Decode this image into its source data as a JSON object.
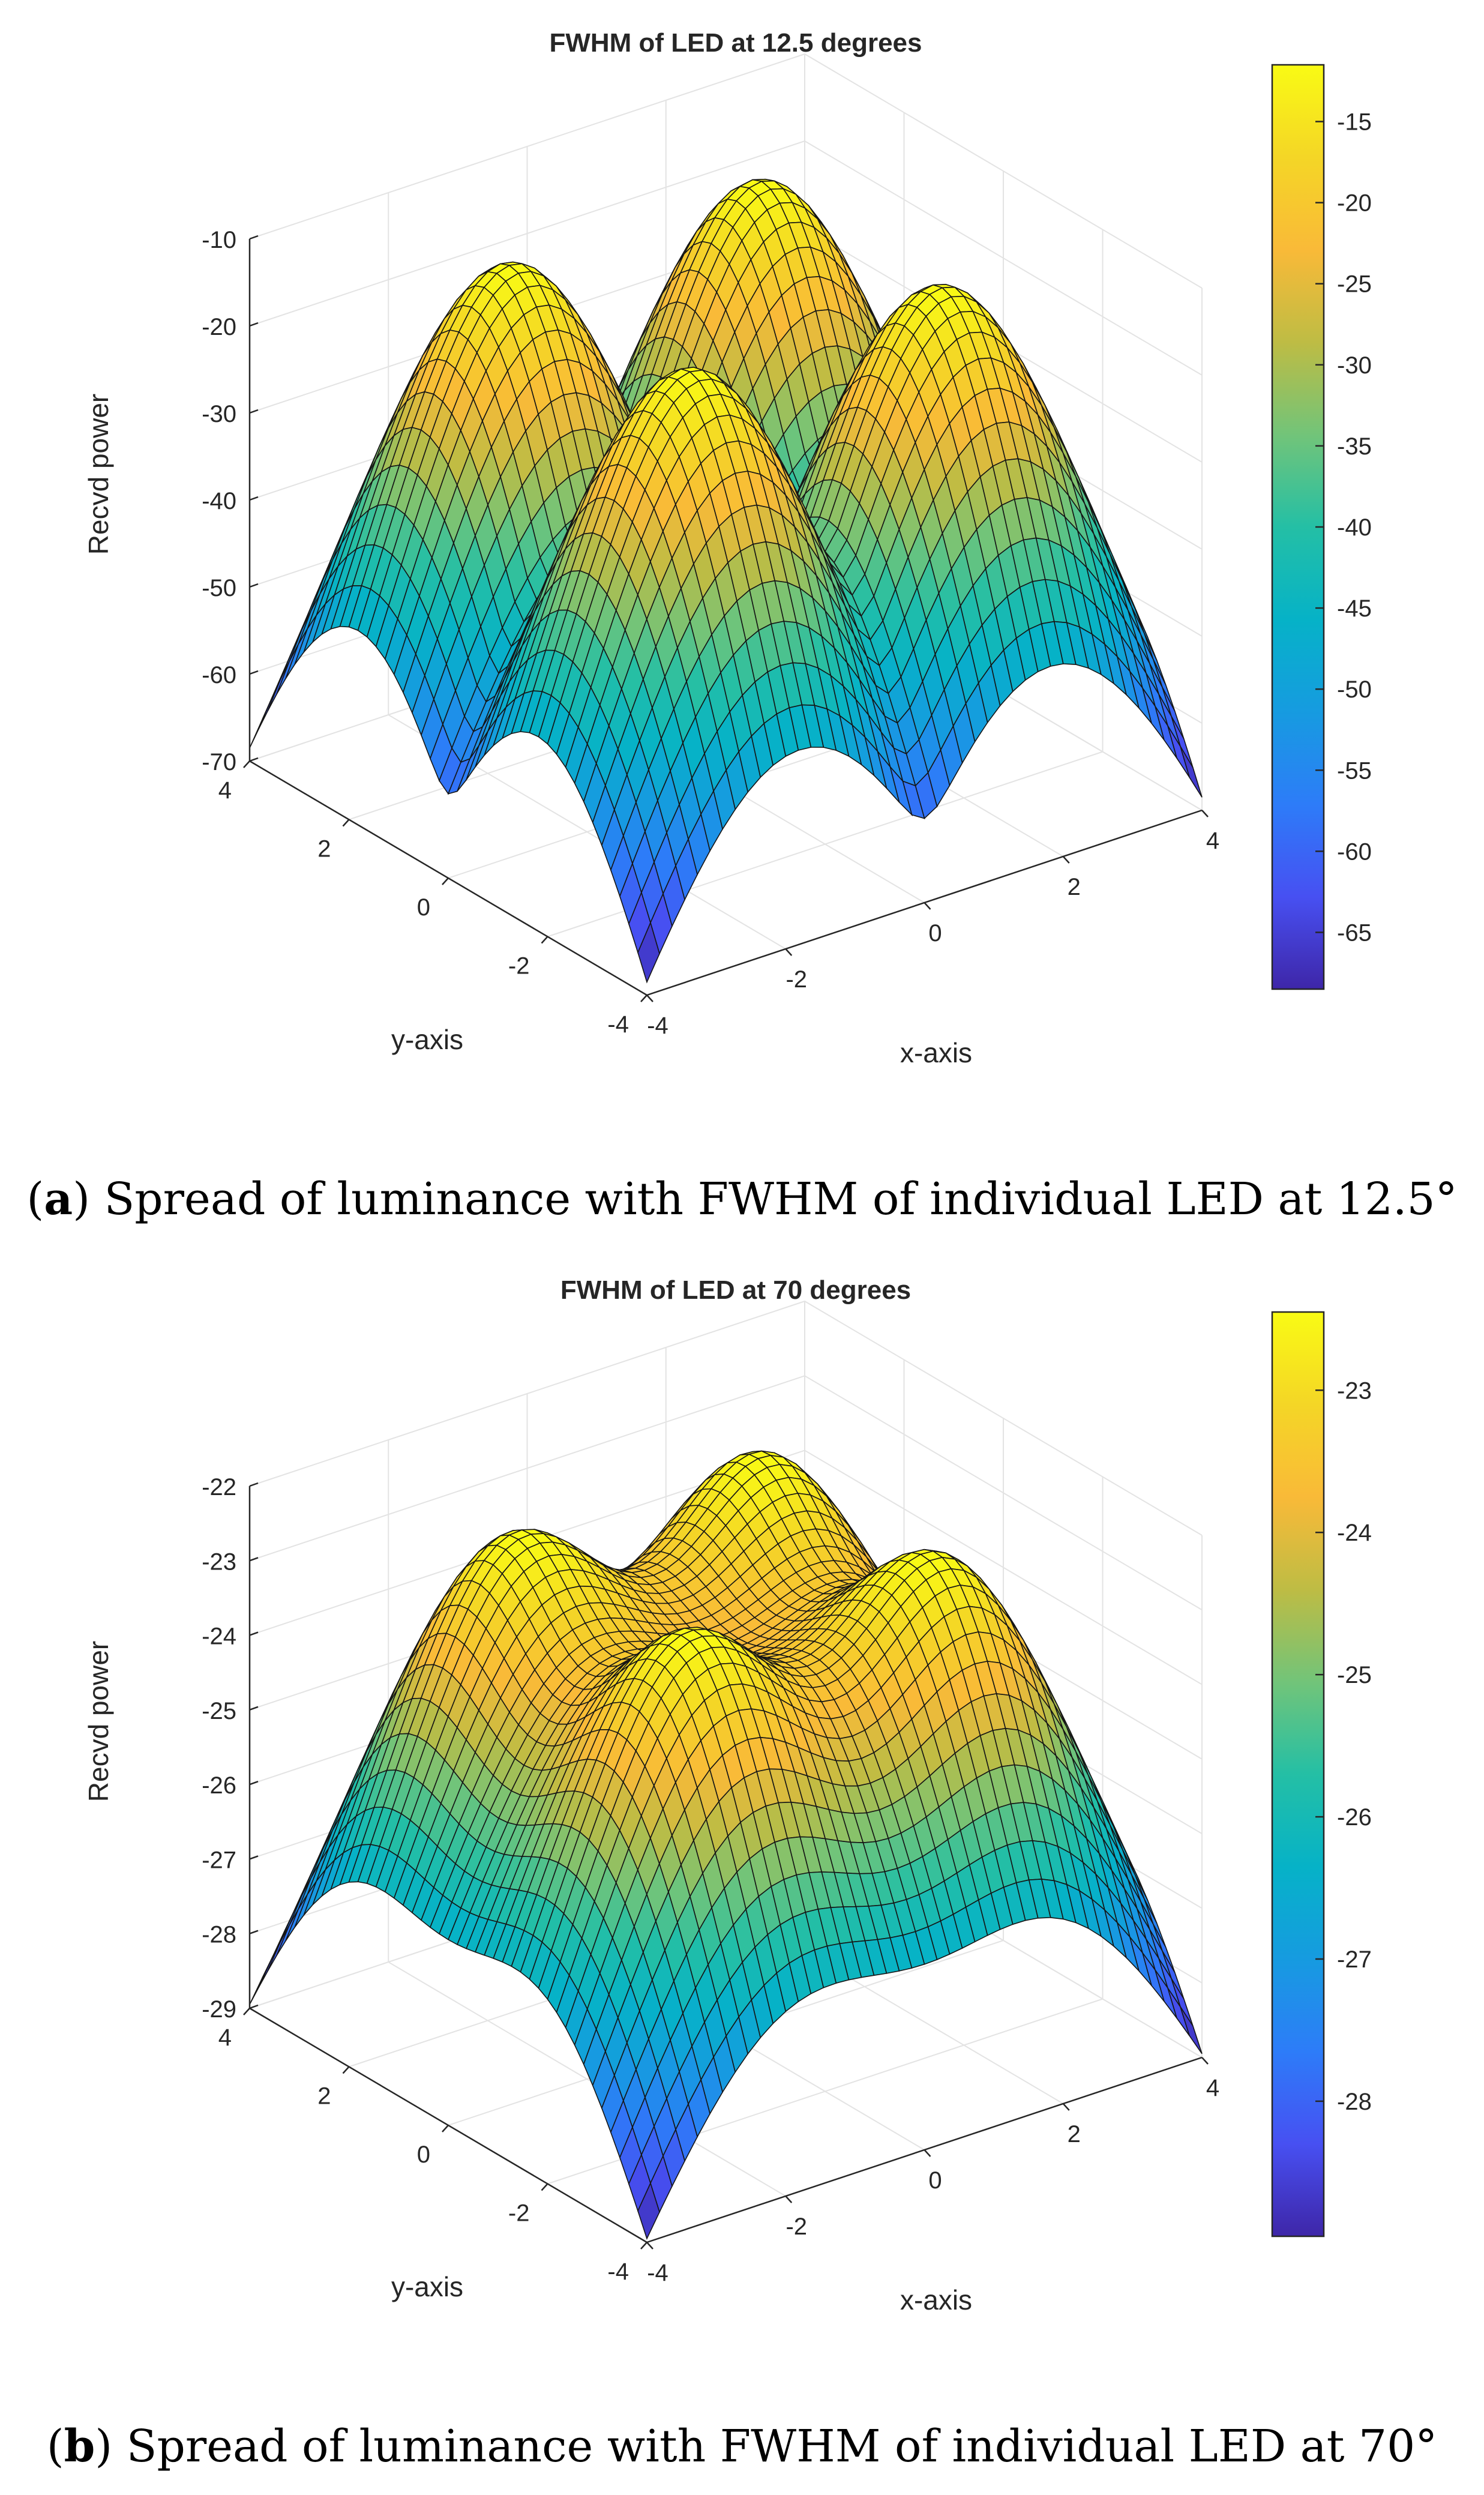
{
  "chart_data": [
    {
      "type": "surface",
      "panel": "a",
      "title": "FWHM of LED at 12.5 degrees",
      "xlabel": "x-axis",
      "ylabel": "y-axis",
      "zlabel": "Recvd power",
      "xlim": [
        -4,
        4
      ],
      "ylim": [
        -4,
        4
      ],
      "zlim": [
        -70,
        -10
      ],
      "xticks": [
        "-4",
        "-2",
        "0",
        "2",
        "4"
      ],
      "yticks": [
        "-4",
        "-2",
        "0",
        "2",
        "4"
      ],
      "zticks": [
        "-70",
        "-60",
        "-50",
        "-40",
        "-30",
        "-20",
        "-10"
      ],
      "grid": true,
      "colormap": "parula",
      "colorbar": {
        "range": [
          -68.5,
          -11.5
        ],
        "ticks": [
          "-65",
          "-60",
          "-55",
          "-50",
          "-45",
          "-40",
          "-35",
          "-30",
          "-25",
          "-20",
          "-15"
        ],
        "tick_values": [
          -65,
          -60,
          -55,
          -50,
          -45,
          -40,
          -35,
          -30,
          -25,
          -20,
          -15
        ]
      },
      "led_positions": [
        [
          -1.8,
          -1.8
        ],
        [
          -1.8,
          1.8
        ],
        [
          1.8,
          -1.8
        ],
        [
          1.8,
          1.8
        ]
      ],
      "led_fwhm_deg": 12.5,
      "z_min": -68.5,
      "z_max": -11.5,
      "caption_label": "a",
      "caption_text": "Spread of luminance with FWHM of individual LED at 12.5°"
    },
    {
      "type": "surface",
      "panel": "b",
      "title": "FWHM of LED at 70 degrees",
      "xlabel": "x-axis",
      "ylabel": "y-axis",
      "zlabel": "Recvd power",
      "xlim": [
        -4,
        4
      ],
      "ylim": [
        -4,
        4
      ],
      "zlim": [
        -29,
        -22
      ],
      "xticks": [
        "-4",
        "-2",
        "0",
        "2",
        "4"
      ],
      "yticks": [
        "-4",
        "-2",
        "0",
        "2",
        "4"
      ],
      "zticks": [
        "-29",
        "-28",
        "-27",
        "-26",
        "-25",
        "-24",
        "-23",
        "-22"
      ],
      "grid": true,
      "colormap": "parula",
      "colorbar": {
        "range": [
          -28.95,
          -22.45
        ],
        "ticks": [
          "-28",
          "-27",
          "-26",
          "-25",
          "-24",
          "-23"
        ],
        "tick_values": [
          -28,
          -27,
          -26,
          -25,
          -24,
          -23
        ]
      },
      "led_positions": [
        [
          -1.8,
          -1.8
        ],
        [
          -1.8,
          1.8
        ],
        [
          1.8,
          -1.8
        ],
        [
          1.8,
          1.8
        ]
      ],
      "led_fwhm_deg": 70,
      "z_min": -28.95,
      "z_max": -22.45,
      "caption_label": "b",
      "caption_text": "Spread of luminance with FWHM of individual LED at 70°"
    }
  ]
}
